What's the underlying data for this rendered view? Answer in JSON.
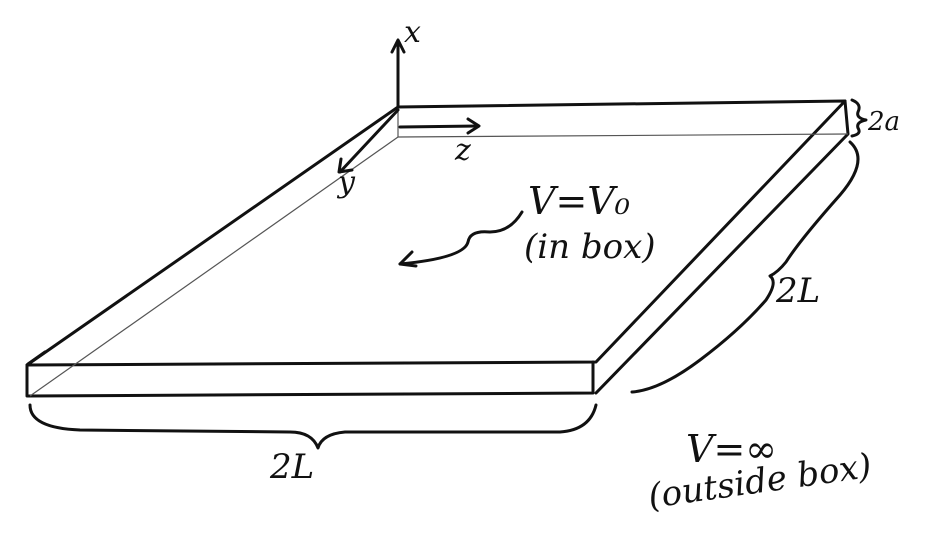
{
  "labels": {
    "axis_x": "x",
    "axis_y": "y",
    "axis_z": "z",
    "thickness": "2a",
    "length_right": "2L",
    "length_bottom": "2L",
    "inside_potential": "V=V₀",
    "inside_note": "(in box)",
    "outside_potential": "V=∞",
    "outside_note": "(outside box)"
  },
  "colors": {
    "ink": "#111111",
    "hidden_edge": "#555555",
    "background": "#ffffff"
  }
}
